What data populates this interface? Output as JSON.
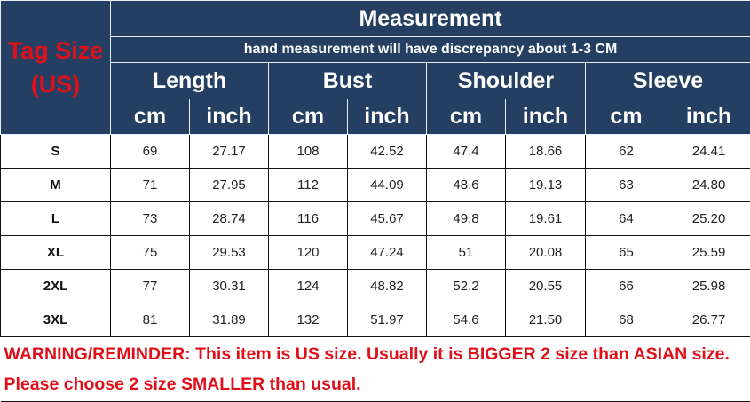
{
  "tag_size_label": [
    "Tag Size",
    "(US)"
  ],
  "title": "Measurement",
  "subtitle": "hand measurement will have discrepancy about 1-3 CM",
  "groups": [
    "Length",
    "Bust",
    "Shoulder",
    "Sleeve"
  ],
  "units": [
    "cm",
    "inch",
    "cm",
    "inch",
    "cm",
    "inch",
    "cm",
    "inch"
  ],
  "rows": [
    {
      "size": "S",
      "values": [
        "69",
        "27.17",
        "108",
        "42.52",
        "47.4",
        "18.66",
        "62",
        "24.41"
      ]
    },
    {
      "size": "M",
      "values": [
        "71",
        "27.95",
        "112",
        "44.09",
        "48.6",
        "19.13",
        "63",
        "24.80"
      ]
    },
    {
      "size": "L",
      "values": [
        "73",
        "28.74",
        "116",
        "45.67",
        "49.8",
        "19.61",
        "64",
        "25.20"
      ]
    },
    {
      "size": "XL",
      "values": [
        "75",
        "29.53",
        "120",
        "47.24",
        "51",
        "20.08",
        "65",
        "25.59"
      ]
    },
    {
      "size": "2XL",
      "values": [
        "77",
        "30.31",
        "124",
        "48.82",
        "52.2",
        "20.55",
        "66",
        "25.98"
      ]
    },
    {
      "size": "3XL",
      "values": [
        "81",
        "31.89",
        "132",
        "51.97",
        "54.6",
        "21.50",
        "68",
        "26.77"
      ]
    }
  ],
  "warning": "WARNING/REMINDER: This item is US size. Usually it is BIGGER 2 size than ASIAN size. Please choose 2 size SMALLER than usual.",
  "colors": {
    "header_bg": "#253f62",
    "accent_red": "#e0101a"
  }
}
